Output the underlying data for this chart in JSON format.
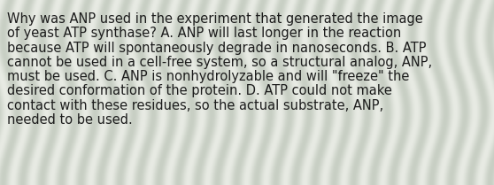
{
  "lines": [
    "Why was ANP used in the experiment that generated the image",
    "of yeast ATP synthase? A. ANP will last longer in the reaction",
    "because ATP will spontaneously degrade in nanoseconds. B. ATP",
    "cannot be used in a cell-free system, so a structural analog, ANP,",
    "must be used. C. ANP is nonhydrolyzable and will \"freeze\" the",
    "desired conformation of the protein. D. ATP could not make",
    "contact with these residues, so the actual substrate, ANP,",
    "needed to be used."
  ],
  "text_color": "#1c1c1c",
  "font_size": 10.5,
  "fig_width": 5.58,
  "fig_height": 2.09,
  "dpi": 100,
  "bg_light": "#e8ebe4",
  "bg_dark": "#c8cfc4",
  "stripe_period": 22,
  "stripe_amplitude": 8
}
